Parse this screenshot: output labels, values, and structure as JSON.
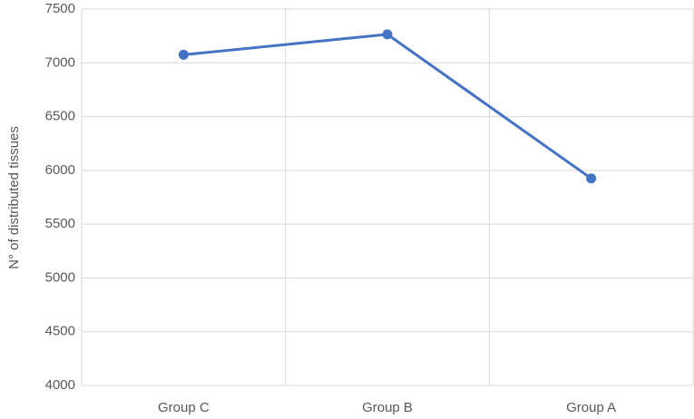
{
  "chart_data": {
    "type": "line",
    "y_label": "N° of distributed tissues",
    "categories": [
      "Group C",
      "Group B",
      "Group A"
    ],
    "series": [
      {
        "name": null,
        "color": "#4472c4",
        "values": [
          7075,
          7265,
          5925
        ]
      }
    ],
    "ylim": [
      4000,
      7500
    ],
    "yticks": [
      4000,
      4500,
      5000,
      5500,
      6000,
      6500,
      7000,
      7500
    ],
    "grid": true
  }
}
